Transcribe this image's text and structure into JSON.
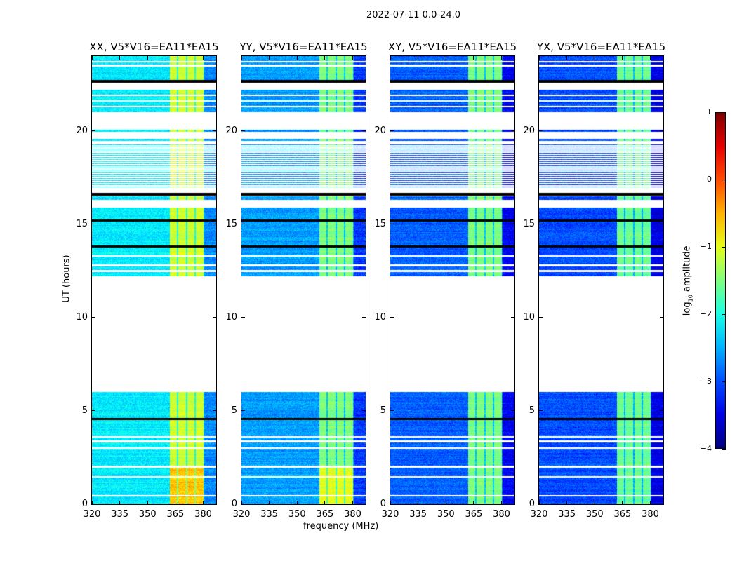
{
  "figure": {
    "suptitle": "2022-07-11 0.0-24.0",
    "xlabel": "frequency (MHz)",
    "ylabel": "UT (hours)",
    "colorbar_label": "log",
    "colorbar_label_sub": "10",
    "colorbar_label_rest": " amplitude"
  },
  "chart_data": {
    "type": "heatmap",
    "title": "2022-07-11 0.0-24.0",
    "xlabel": "frequency (MHz)",
    "ylabel": "UT (hours)",
    "xlim": [
      320,
      387
    ],
    "ylim": [
      0,
      24
    ],
    "xticks": [
      "320",
      "335",
      "350",
      "365",
      "380"
    ],
    "yticks": [
      "0",
      "5",
      "10",
      "15",
      "20"
    ],
    "colorbar": {
      "label": "log10 amplitude",
      "range": [
        -4,
        1
      ],
      "ticks": [
        "1",
        "0",
        "−1",
        "−2",
        "−3",
        "−4"
      ],
      "colormap": "jet"
    },
    "data_segments_hours": [
      [
        0,
        4.5
      ],
      [
        4.6,
        6.0
      ],
      [
        12.2,
        15.9
      ],
      [
        16.3,
        16.5
      ],
      [
        19.45,
        19.55
      ],
      [
        19.95,
        20.05
      ],
      [
        21.0,
        22.2
      ],
      [
        22.7,
        24.0
      ]
    ],
    "sparse_segments_hours": [
      [
        16.9,
        19.3
      ]
    ],
    "flagged_rows_hours": [
      0.45,
      1.47,
      2.0,
      3.0,
      3.35,
      3.6,
      12.5,
      12.8,
      13.3,
      21.3,
      21.6,
      21.9,
      23.5,
      23.7
    ],
    "black_rows_hours": [
      4.55,
      13.8,
      15.2,
      16.6,
      22.65
    ],
    "bright_band_mhz": [
      362,
      380
    ],
    "band_channel_gaps_mhz": [
      366,
      371,
      375.5
    ],
    "panels": [
      {
        "title": "XX, V5*V16=EA11*EA15",
        "background_log_amp": -2.2,
        "band_log_amp": -1.1
      },
      {
        "title": "YY, V5*V16=EA11*EA15",
        "background_log_amp": -2.6,
        "band_log_amp": -1.5
      },
      {
        "title": "XY, V5*V16=EA11*EA15",
        "background_log_amp": -2.9,
        "band_log_amp": -1.5
      },
      {
        "title": "YX, V5*V16=EA11*EA15",
        "background_log_amp": -3.0,
        "band_log_amp": -1.6
      }
    ]
  }
}
